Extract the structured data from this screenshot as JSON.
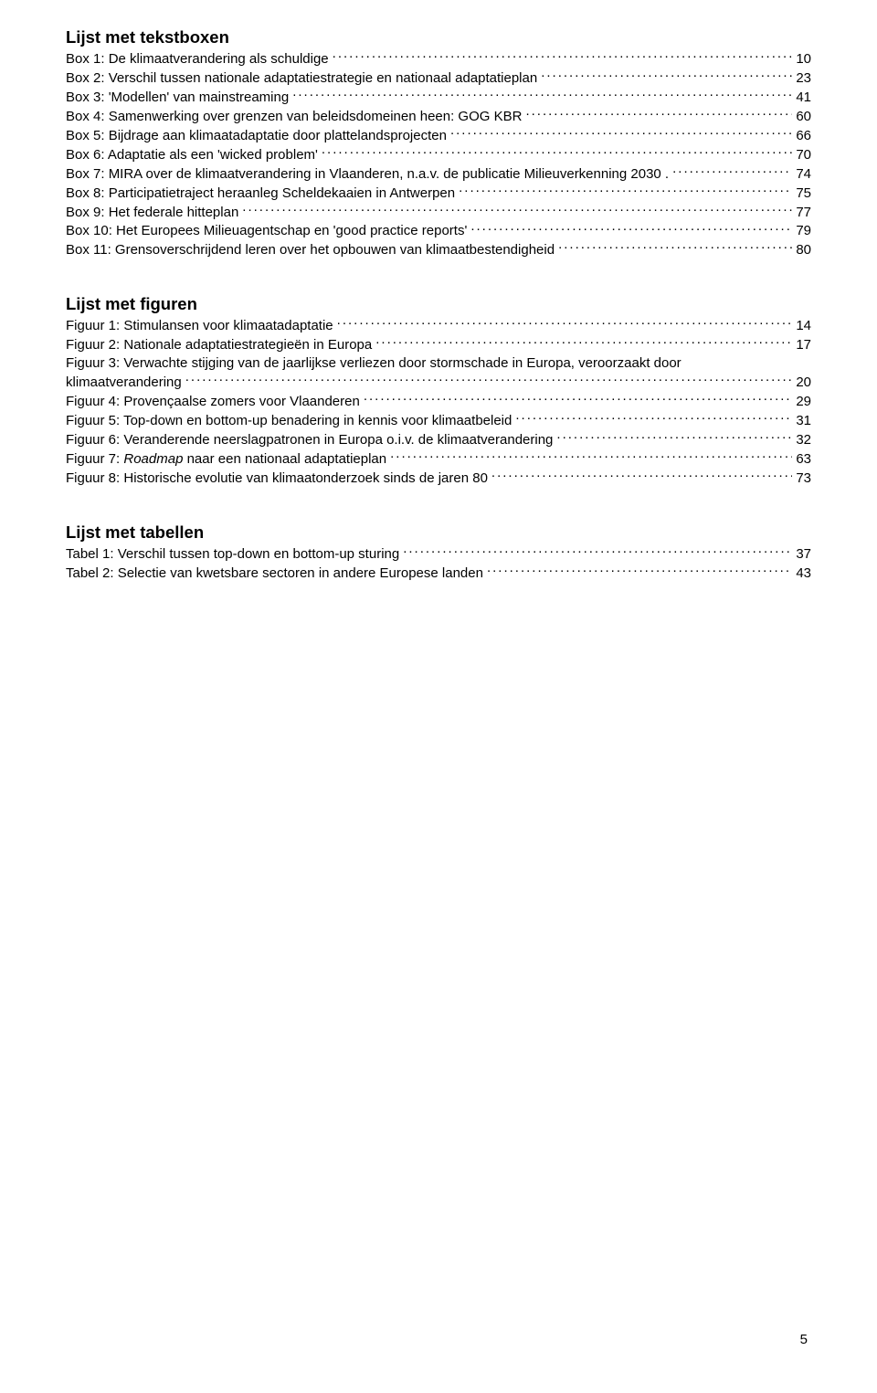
{
  "colors": {
    "text": "#000000",
    "background": "#ffffff"
  },
  "typography": {
    "heading_size_pt": 14,
    "body_size_pt": 11,
    "font_family": "Arial"
  },
  "sections": {
    "boxes": {
      "heading": "Lijst met tekstboxen",
      "entries": [
        {
          "label": "Box 1: De klimaatverandering als schuldige",
          "page": "10"
        },
        {
          "label": "Box 2: Verschil tussen nationale adaptatiestrategie en nationaal adaptatieplan",
          "page": "23"
        },
        {
          "label": "Box 3: 'Modellen' van mainstreaming",
          "page": "41"
        },
        {
          "label": "Box 4: Samenwerking over grenzen van beleidsdomeinen heen: GOG KBR",
          "page": "60"
        },
        {
          "label": "Box 5: Bijdrage aan klimaatadaptatie door plattelandsprojecten",
          "page": "66"
        },
        {
          "label": "Box 6: Adaptatie als een 'wicked problem'",
          "page": "70"
        },
        {
          "label": "Box 7: MIRA over de klimaatverandering in Vlaanderen, n.a.v. de publicatie Milieuverkenning 2030 .",
          "page": "74"
        },
        {
          "label": "Box 8: Participatietraject heraanleg Scheldekaaien in Antwerpen",
          "page": "75"
        },
        {
          "label": "Box 9: Het federale hitteplan",
          "page": "77"
        },
        {
          "label": "Box 10: Het Europees Milieuagentschap en 'good practice reports'",
          "page": "79"
        },
        {
          "label": "Box 11: Grensoverschrijdend leren over het opbouwen van klimaatbestendigheid",
          "page": "80"
        }
      ]
    },
    "figures": {
      "heading": "Lijst met figuren",
      "entries": [
        {
          "label": "Figuur 1: Stimulansen voor klimaatadaptatie",
          "page": "14"
        },
        {
          "label": "Figuur 2: Nationale adaptatiestrategieën in Europa",
          "page": "17"
        },
        {
          "label_line1": "Figuur 3: Verwachte stijging van de jaarlijkse verliezen door stormschade in Europa, veroorzaakt door",
          "label_line2": "klimaatverandering",
          "page": "20",
          "multiline": true
        },
        {
          "label": "Figuur 4: Provençaalse zomers voor Vlaanderen",
          "page": "29"
        },
        {
          "label": "Figuur 5: Top-down en bottom-up benadering in kennis voor klimaatbeleid",
          "page": "31"
        },
        {
          "label": "Figuur 6: Veranderende neerslagpatronen in Europa o.i.v. de klimaatverandering",
          "page": "32"
        },
        {
          "label_prefix": "Figuur 7: ",
          "label_italic": "Roadmap",
          "label_suffix": " naar een nationaal adaptatieplan",
          "page": "63",
          "styled": true
        },
        {
          "label": "Figuur 8: Historische evolutie van klimaatonderzoek sinds de jaren 80",
          "page": "73"
        }
      ]
    },
    "tables": {
      "heading": "Lijst met tabellen",
      "entries": [
        {
          "label": "Tabel 1: Verschil tussen top-down en bottom-up sturing",
          "page": "37"
        },
        {
          "label": "Tabel 2: Selectie van kwetsbare sectoren in andere Europese landen",
          "page": "43"
        }
      ]
    }
  },
  "page_number": "5"
}
